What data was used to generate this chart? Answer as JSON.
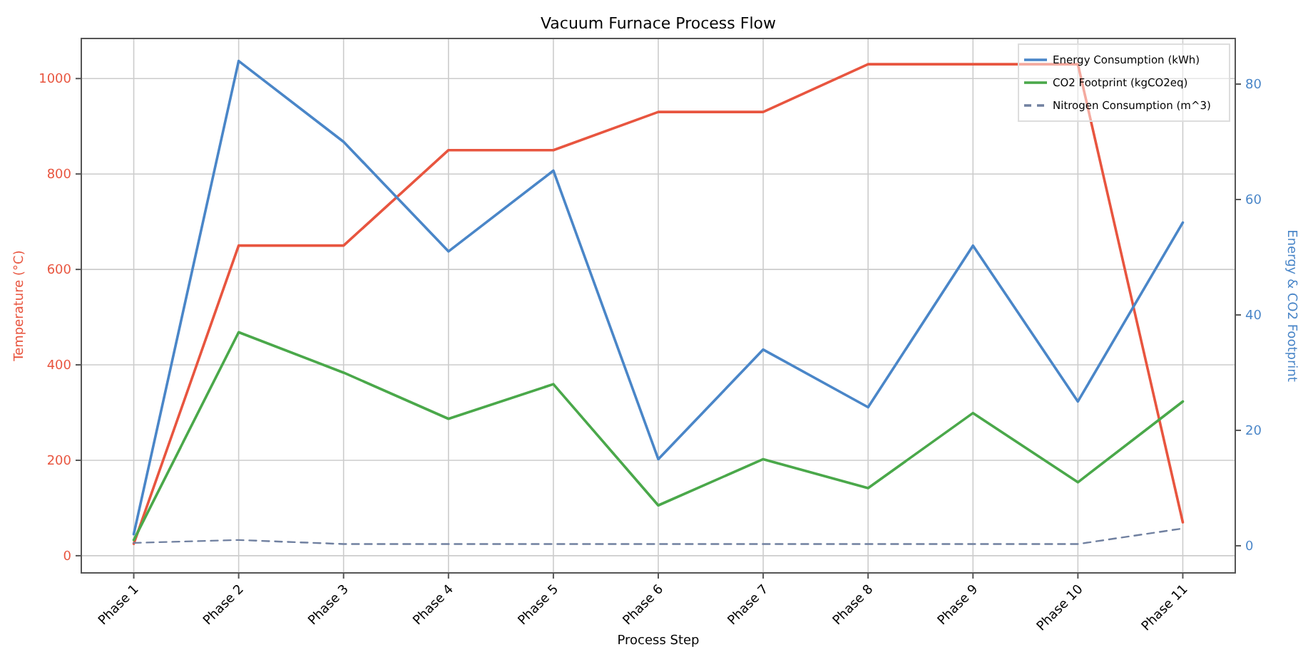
{
  "chart_data": {
    "type": "line",
    "title": "Vacuum Furnace Process Flow",
    "xlabel": "Process Step",
    "ylabel": "Temperature (°C)",
    "y2label": "Energy & CO2 Footprint",
    "categories": [
      "Phase 1",
      "Phase 2",
      "Phase 3",
      "Phase 4",
      "Phase 5",
      "Phase 6",
      "Phase 7",
      "Phase 8",
      "Phase 9",
      "Phase 10",
      "Phase 11"
    ],
    "series": [
      {
        "color": "#e8553f",
        "values": [
          25,
          650,
          650,
          850,
          850,
          930,
          930,
          1030,
          1030,
          1030,
          70
        ]
      },
      {
        "name": "Energy Consumption (kWh)",
        "color": "#4a86c8",
        "axis": "y2",
        "values": [
          2,
          84,
          70,
          51,
          65,
          15,
          34,
          24,
          52,
          25,
          56
        ]
      },
      {
        "name": "CO2 Footprint (kgCO2eq)",
        "color": "#4aa84a",
        "axis": "y2",
        "values": [
          1,
          37,
          30,
          22,
          28,
          7,
          15,
          10,
          23,
          11,
          25
        ]
      },
      {
        "name": "Nitrogen Consumption (m^3)",
        "color": "#7080a0",
        "axis": "y2",
        "line_style": "dashed",
        "values": [
          0.5,
          1,
          0.3,
          0.3,
          0.3,
          0.3,
          0.3,
          0.3,
          0.3,
          0.3,
          3
        ]
      }
    ],
    "ylim": [
      -36,
      1084
    ],
    "yticks": [
      0,
      200,
      400,
      600,
      800,
      1000
    ],
    "y2lim": [
      -4.7,
      87.9
    ],
    "y2ticks": [
      0,
      20,
      40,
      60,
      80
    ],
    "grid": true,
    "legend": "top right"
  }
}
